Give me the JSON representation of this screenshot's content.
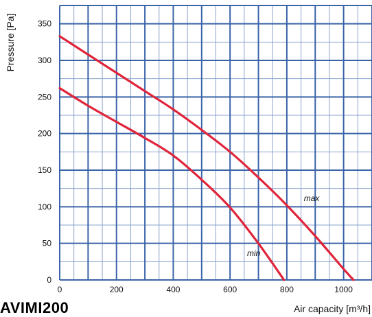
{
  "chart_data": {
    "type": "line",
    "title": "",
    "xlabel": "Air capacity [m³/h]",
    "ylabel": "Pressure [Pa]",
    "xlim": [
      0,
      1100
    ],
    "ylim": [
      0,
      375
    ],
    "x_ticks": [
      0,
      200,
      400,
      600,
      800,
      1000
    ],
    "y_ticks": [
      0,
      50,
      100,
      150,
      200,
      250,
      300,
      350
    ],
    "grid": true,
    "colors": {
      "major_grid": "#3a63a8",
      "minor_grid": "#8aa2ce",
      "curve": "#e0243a"
    },
    "series": [
      {
        "name": "max",
        "points": [
          [
            0,
            333
          ],
          [
            100,
            308
          ],
          [
            200,
            283
          ],
          [
            300,
            258
          ],
          [
            400,
            233
          ],
          [
            500,
            205
          ],
          [
            600,
            175
          ],
          [
            700,
            140
          ],
          [
            800,
            102
          ],
          [
            900,
            60
          ],
          [
            1000,
            15
          ],
          [
            1035,
            0
          ]
        ]
      },
      {
        "name": "min",
        "points": [
          [
            0,
            262
          ],
          [
            100,
            238
          ],
          [
            200,
            216
          ],
          [
            300,
            194
          ],
          [
            400,
            170
          ],
          [
            500,
            137
          ],
          [
            600,
            99
          ],
          [
            700,
            50
          ],
          [
            790,
            0
          ]
        ]
      }
    ],
    "annotations": [
      {
        "text": "max",
        "x": 860,
        "y": 108
      },
      {
        "text": "min",
        "x": 660,
        "y": 33
      }
    ]
  },
  "model_label": "AVIMI200"
}
